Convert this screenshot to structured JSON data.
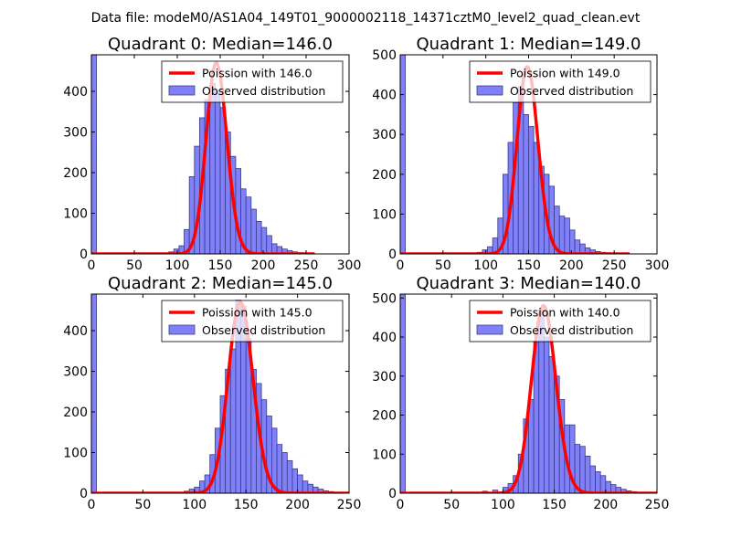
{
  "suptitle": "Data file: modeM0/AS1A04_149T01_9000002118_14371cztM0_level2_quad_clean.evt",
  "colors": {
    "bar_fill": "#8080f8",
    "bar_edge": "#3a3a8a",
    "poisson": "#ff0000",
    "axes": "#000000"
  },
  "chart_data": [
    {
      "type": "bar",
      "title": "Quadrant 0: Median=146.0",
      "legend": {
        "placement": "top-right",
        "poisson_label": "Poission with 146.0",
        "hist_label": "Observed distribution"
      },
      "xlim": [
        0,
        300
      ],
      "ylim": [
        0,
        490
      ],
      "xticks": [
        0,
        50,
        100,
        150,
        200,
        250,
        300
      ],
      "yticks": [
        0,
        100,
        200,
        300,
        400
      ],
      "bin_width": 6,
      "bins": [
        [
          0,
          490
        ],
        [
          90,
          5
        ],
        [
          96,
          12
        ],
        [
          102,
          20
        ],
        [
          108,
          60
        ],
        [
          114,
          190
        ],
        [
          120,
          265
        ],
        [
          126,
          335
        ],
        [
          132,
          380
        ],
        [
          138,
          420
        ],
        [
          144,
          400
        ],
        [
          150,
          360
        ],
        [
          156,
          300
        ],
        [
          162,
          240
        ],
        [
          168,
          210
        ],
        [
          174,
          160
        ],
        [
          180,
          140
        ],
        [
          186,
          110
        ],
        [
          192,
          80
        ],
        [
          198,
          65
        ],
        [
          204,
          45
        ],
        [
          210,
          25
        ],
        [
          216,
          18
        ],
        [
          222,
          12
        ],
        [
          228,
          8
        ],
        [
          234,
          5
        ],
        [
          240,
          3
        ],
        [
          246,
          2
        ],
        [
          252,
          1
        ]
      ],
      "poisson_mean": 146.0,
      "poisson_peak": 470,
      "poisson_xmax": 260
    },
    {
      "type": "bar",
      "title": "Quadrant 1: Median=149.0",
      "legend": {
        "placement": "top-right",
        "poisson_label": "Poission with 149.0",
        "hist_label": "Observed distribution"
      },
      "xlim": [
        0,
        300
      ],
      "ylim": [
        0,
        500
      ],
      "xticks": [
        0,
        50,
        100,
        150,
        200,
        250,
        300
      ],
      "yticks": [
        0,
        100,
        200,
        300,
        400,
        500
      ],
      "bin_width": 6,
      "bins": [
        [
          0,
          500
        ],
        [
          90,
          4
        ],
        [
          96,
          10
        ],
        [
          102,
          18
        ],
        [
          108,
          40
        ],
        [
          114,
          90
        ],
        [
          120,
          200
        ],
        [
          126,
          280
        ],
        [
          132,
          380
        ],
        [
          138,
          420
        ],
        [
          144,
          350
        ],
        [
          150,
          320
        ],
        [
          156,
          280
        ],
        [
          162,
          220
        ],
        [
          168,
          200
        ],
        [
          174,
          170
        ],
        [
          180,
          120
        ],
        [
          186,
          95
        ],
        [
          192,
          90
        ],
        [
          198,
          60
        ],
        [
          204,
          35
        ],
        [
          210,
          25
        ],
        [
          216,
          15
        ],
        [
          222,
          10
        ],
        [
          228,
          6
        ],
        [
          234,
          4
        ],
        [
          240,
          3
        ],
        [
          246,
          2
        ],
        [
          252,
          1
        ]
      ],
      "poisson_mean": 149.0,
      "poisson_peak": 470,
      "poisson_xmax": 268
    },
    {
      "type": "bar",
      "title": "Quadrant 2: Median=145.0",
      "legend": {
        "placement": "top-right",
        "poisson_label": "Poission with 145.0",
        "hist_label": "Observed distribution"
      },
      "xlim": [
        0,
        250
      ],
      "ylim": [
        0,
        490
      ],
      "xticks": [
        0,
        50,
        100,
        150,
        200,
        250
      ],
      "yticks": [
        0,
        100,
        200,
        300,
        400
      ],
      "bin_width": 5,
      "bins": [
        [
          0,
          490
        ],
        [
          90,
          5
        ],
        [
          95,
          10
        ],
        [
          100,
          15
        ],
        [
          105,
          30
        ],
        [
          110,
          45
        ],
        [
          115,
          95
        ],
        [
          120,
          160
        ],
        [
          125,
          240
        ],
        [
          130,
          305
        ],
        [
          135,
          355
        ],
        [
          140,
          475
        ],
        [
          145,
          460
        ],
        [
          150,
          380
        ],
        [
          155,
          305
        ],
        [
          160,
          270
        ],
        [
          165,
          230
        ],
        [
          170,
          190
        ],
        [
          175,
          160
        ],
        [
          180,
          120
        ],
        [
          185,
          100
        ],
        [
          190,
          80
        ],
        [
          195,
          60
        ],
        [
          200,
          45
        ],
        [
          205,
          30
        ],
        [
          210,
          22
        ],
        [
          215,
          15
        ],
        [
          220,
          10
        ],
        [
          225,
          6
        ],
        [
          230,
          4
        ],
        [
          235,
          2
        ],
        [
          240,
          1
        ]
      ],
      "poisson_mean": 145.0,
      "poisson_peak": 470,
      "poisson_xmax": 250
    },
    {
      "type": "bar",
      "title": "Quadrant 3: Median=140.0",
      "legend": {
        "placement": "top-right",
        "poisson_label": "Poission with 140.0",
        "hist_label": "Observed distribution"
      },
      "xlim": [
        0,
        250
      ],
      "ylim": [
        0,
        510
      ],
      "xticks": [
        0,
        50,
        100,
        150,
        200,
        250
      ],
      "yticks": [
        0,
        100,
        200,
        300,
        400,
        500
      ],
      "bin_width": 5,
      "bins": [
        [
          0,
          510
        ],
        [
          70,
          2
        ],
        [
          80,
          5
        ],
        [
          90,
          8
        ],
        [
          100,
          15
        ],
        [
          105,
          25
        ],
        [
          110,
          45
        ],
        [
          115,
          100
        ],
        [
          120,
          190
        ],
        [
          125,
          240
        ],
        [
          130,
          390
        ],
        [
          135,
          470
        ],
        [
          140,
          400
        ],
        [
          145,
          350
        ],
        [
          150,
          300
        ],
        [
          155,
          240
        ],
        [
          160,
          175
        ],
        [
          165,
          175
        ],
        [
          170,
          125
        ],
        [
          175,
          120
        ],
        [
          180,
          95
        ],
        [
          185,
          70
        ],
        [
          190,
          55
        ],
        [
          195,
          45
        ],
        [
          200,
          30
        ],
        [
          205,
          22
        ],
        [
          210,
          15
        ],
        [
          215,
          10
        ],
        [
          220,
          6
        ],
        [
          225,
          4
        ],
        [
          230,
          2
        ],
        [
          235,
          1
        ]
      ],
      "poisson_mean": 140.0,
      "poisson_peak": 480,
      "poisson_xmax": 250
    }
  ]
}
